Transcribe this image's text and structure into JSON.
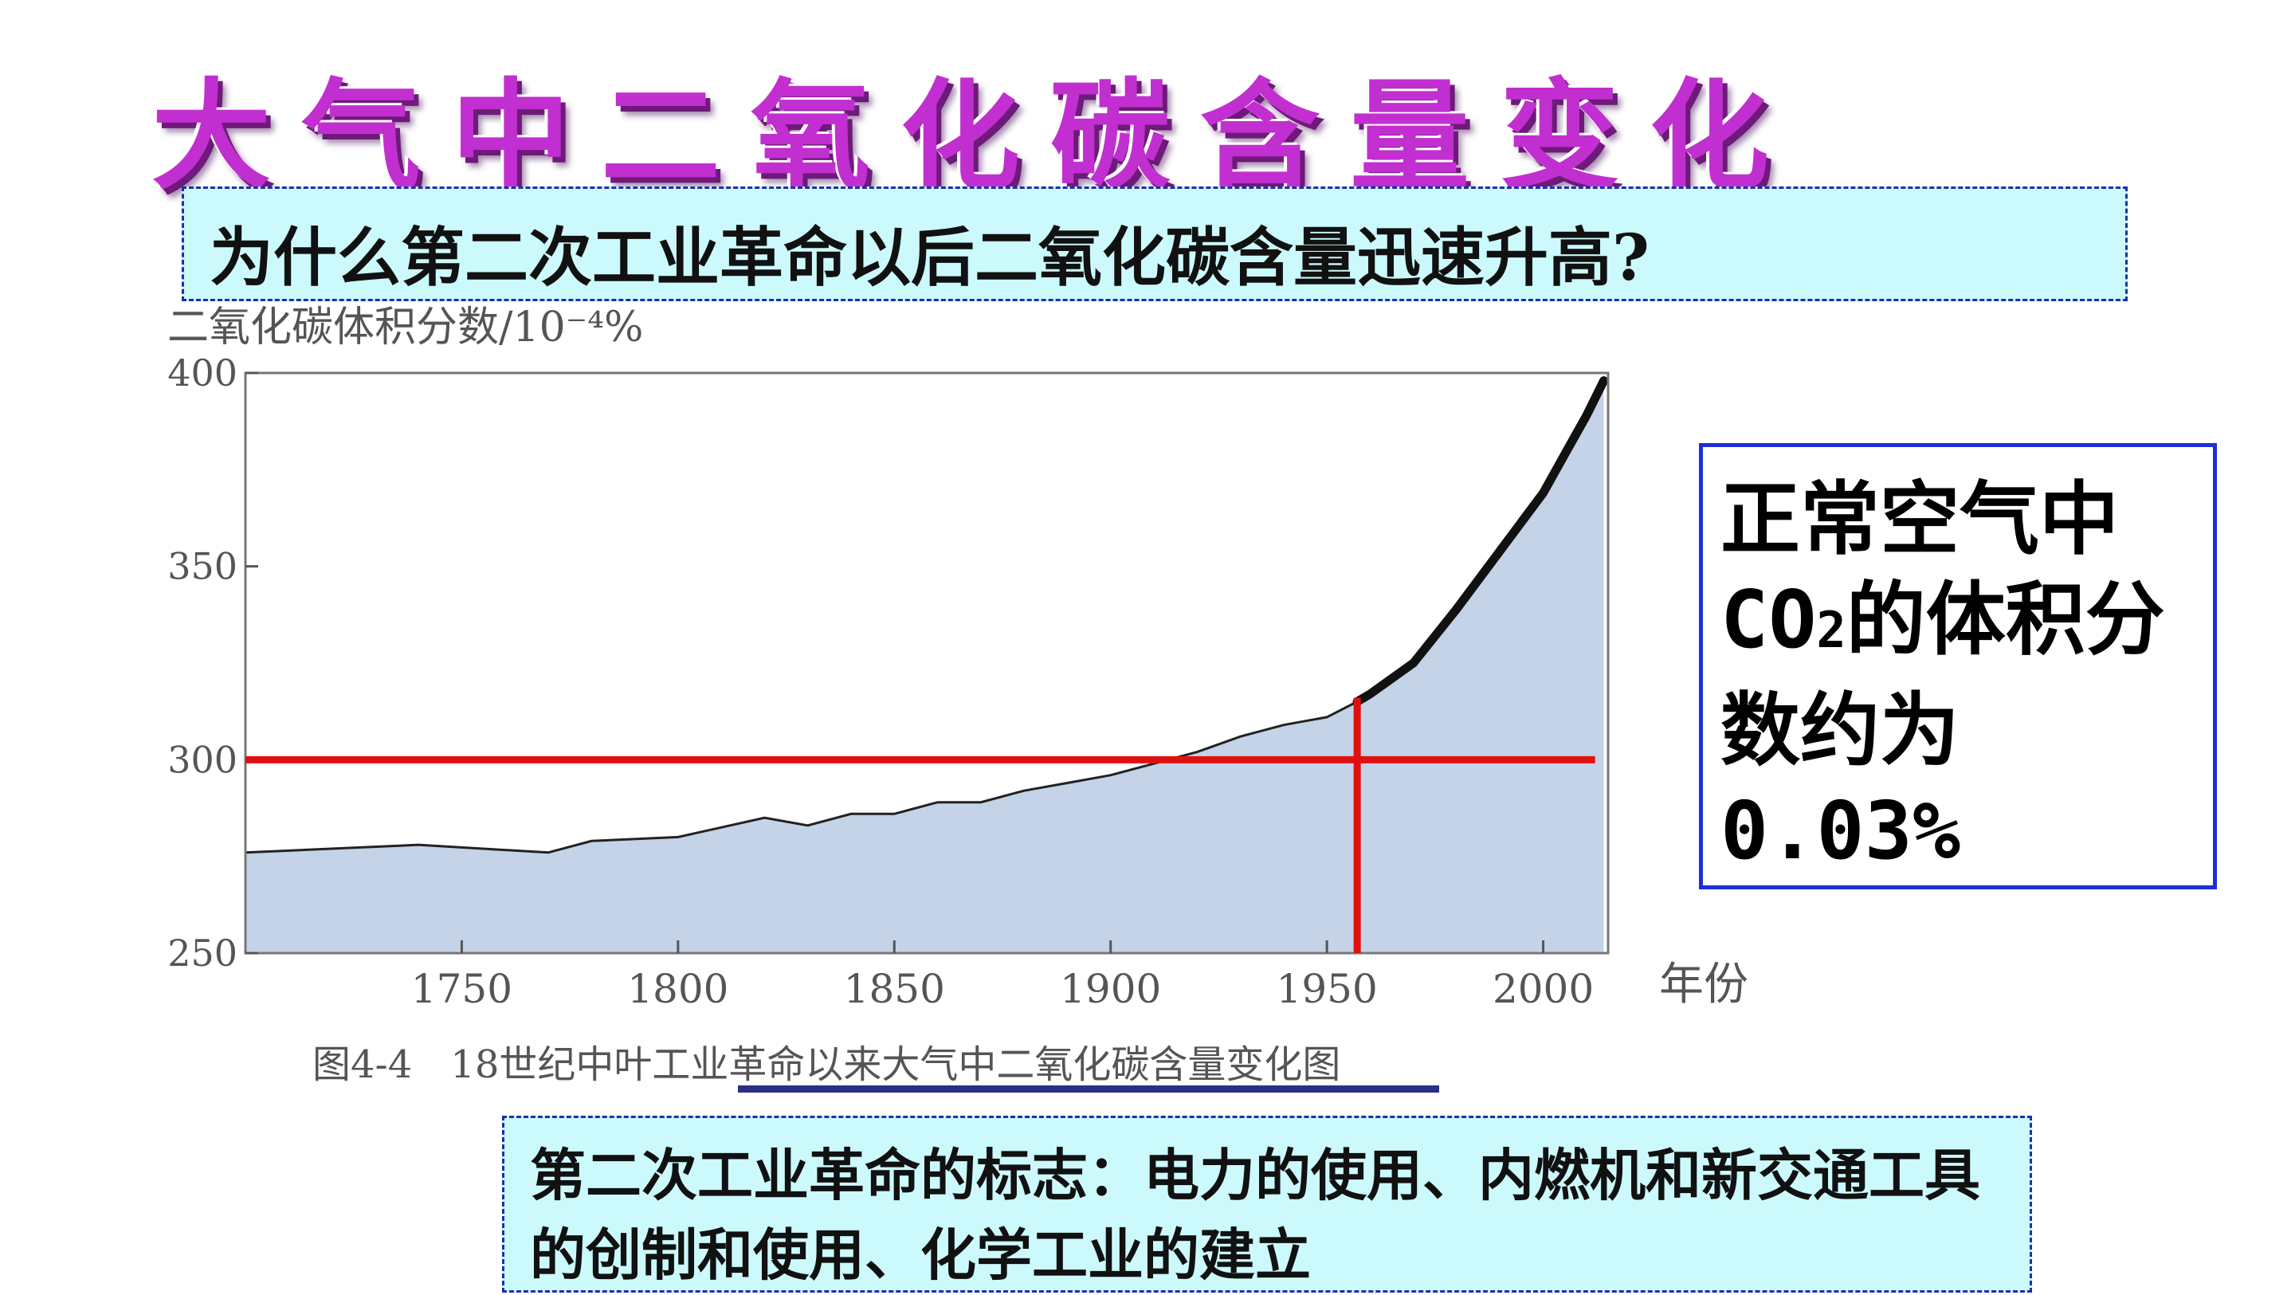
{
  "slide": {
    "title": "大气中二氧化碳含量变化",
    "question": "为什么第二次工业革命以后二氧化碳含量迅速升高?",
    "note_line1": "正常空气中",
    "note_line2_prefix": "CO",
    "note_line2_sub": "2",
    "note_line2_suffix": "的体积分",
    "note_line3": "数约为",
    "note_line4": "0.03%",
    "bottom_text": "第二次工业革命的标志：电力的使用、内燃机和新交通工具的创制和使用、化学工业的建立",
    "colors": {
      "title": "#c22fd0",
      "box_fill": "#ccfafc",
      "box_border": "#1d2fa7",
      "area_fill": "#c5d3e8",
      "marker": "#e01010",
      "note_border": "#1f2ed6"
    }
  },
  "chart_data": {
    "type": "area",
    "title": "",
    "ylabel": "二氧化碳体积分数/10⁻⁴%",
    "xlabel": "年份",
    "caption": "图4-4　18世纪中叶工业革命以来大气中二氧化碳含量变化图",
    "xlim": [
      1700,
      2015
    ],
    "ylim": [
      250,
      400
    ],
    "x_ticks": [
      "1750",
      "1800",
      "1850",
      "1900",
      "1950",
      "2000"
    ],
    "y_ticks": [
      "250",
      "300",
      "350",
      "400"
    ],
    "reference_line": {
      "y": 300
    },
    "reference_marker": {
      "x": 1957
    },
    "series": [
      {
        "x": [
          1700,
          1740,
          1770,
          1780,
          1800,
          1820,
          1830,
          1840,
          1850,
          1860,
          1870,
          1880,
          1890,
          1900,
          1910,
          1920,
          1930,
          1940,
          1950,
          1957,
          1960,
          1970,
          1980,
          1990,
          2000,
          2005,
          2010,
          2014
        ],
        "y": [
          276,
          278,
          276,
          279,
          280,
          285,
          283,
          286,
          286,
          289,
          289,
          292,
          294,
          296,
          299,
          302,
          306,
          309,
          311,
          315,
          317,
          325,
          339,
          354,
          369,
          379,
          389,
          398
        ]
      }
    ]
  }
}
